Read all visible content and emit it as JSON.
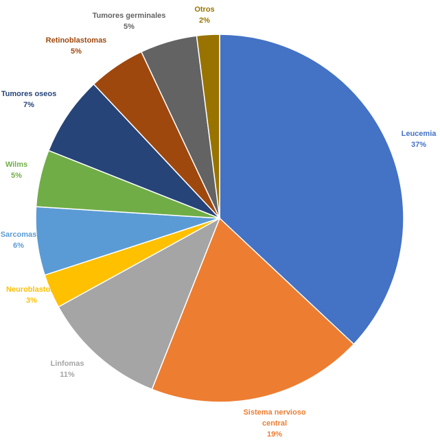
{
  "chart_data": {
    "type": "pie",
    "title": "",
    "legend": "none",
    "slices": [
      {
        "label": "Leucemia",
        "value": 37,
        "value_label": "37%",
        "color": "#4472C4"
      },
      {
        "label": "Sistema nervioso central",
        "label_lines": [
          "Sistema nervioso",
          "central"
        ],
        "value": 19,
        "value_label": "19%",
        "color": "#ED7D31"
      },
      {
        "label": "Linfomas",
        "value": 11,
        "value_label": "11%",
        "color": "#A5A5A5"
      },
      {
        "label": "Neuroblastoma",
        "label_lines": [
          "Neuroblastom"
        ],
        "value": 3,
        "value_label": "3%",
        "color": "#FFC000"
      },
      {
        "label": "Sarcomas",
        "value": 6,
        "value_label": "6%",
        "color": "#5B9BD5"
      },
      {
        "label": "Wilms",
        "value": 5,
        "value_label": "5%",
        "color": "#70AD47"
      },
      {
        "label": "Tumores oseos",
        "value": 7,
        "value_label": "7%",
        "color": "#264478"
      },
      {
        "label": "Retinoblastomas",
        "value": 5,
        "value_label": "5%",
        "color": "#9E480E"
      },
      {
        "label": "Tumores germinales",
        "value": 5,
        "value_label": "5%",
        "color": "#636363"
      },
      {
        "label": "Otros",
        "value": 2,
        "value_label": "2%",
        "color": "#997300"
      }
    ]
  }
}
